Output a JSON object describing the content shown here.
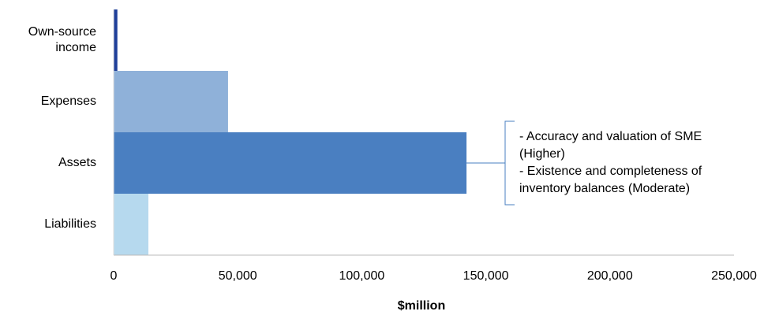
{
  "chart_data": {
    "type": "bar",
    "orientation": "horizontal",
    "categories": [
      "Own-source income",
      "Expenses",
      "Assets",
      "Liabilities"
    ],
    "values": [
      1500,
      46100,
      142200,
      14000
    ],
    "colors": [
      "#1f3f99",
      "#8fb1d9",
      "#4a7fc1",
      "#b6d9ee"
    ],
    "xlim": [
      0,
      250000
    ],
    "xticks": [
      0,
      {
        "value": 50000,
        "label": "50,000"
      },
      {
        "value": 100000,
        "label": "100,000"
      },
      {
        "value": 150000,
        "label": "150,000"
      },
      {
        "value": 200000,
        "label": "200,000"
      },
      {
        "value": 250000,
        "label": "250,000"
      }
    ],
    "xlabel": "$million",
    "annotation": {
      "category": "Assets",
      "lines": [
        "- Accuracy and valuation of SME (Higher)",
        "- Existence and completeness of inventory balances (Moderate)"
      ]
    }
  }
}
